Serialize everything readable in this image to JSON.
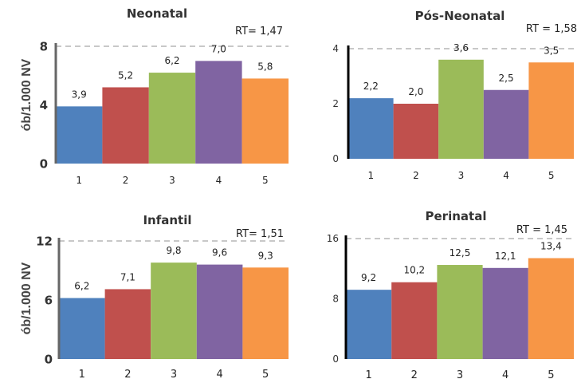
{
  "header_fragment": "",
  "ylabel": "ób/1.000 NV",
  "chart_data": [
    {
      "type": "bar",
      "title": "Neonatal",
      "annotation": "RT= 1,47",
      "categories": [
        "1",
        "2",
        "3",
        "4",
        "5"
      ],
      "values": [
        3.9,
        5.2,
        6.2,
        7.0,
        5.8
      ],
      "value_labels": [
        "3,9",
        "5,2",
        "6,2",
        "7,0",
        "5,8"
      ],
      "ylim": [
        0,
        8
      ],
      "yticks": [
        0,
        4,
        8
      ],
      "ytick_labels": [
        "0",
        "4",
        "8"
      ],
      "ylabel": "ób/1.000 NV",
      "colors": [
        "#4f81bd",
        "#c0504d",
        "#9bbb59",
        "#8064a2",
        "#f79646"
      ]
    },
    {
      "type": "bar",
      "title": "Pós-Neonatal",
      "annotation": "RT = 1,58",
      "categories": [
        "1",
        "2",
        "3",
        "4",
        "5"
      ],
      "values": [
        2.2,
        2.0,
        3.6,
        2.5,
        3.5
      ],
      "value_labels": [
        "2,2",
        "2,0",
        "3,6",
        "2,5",
        "3,5"
      ],
      "ylim": [
        0,
        4
      ],
      "yticks": [
        0,
        2,
        4
      ],
      "ytick_labels": [
        "0",
        "2",
        "4"
      ],
      "colors": [
        "#4f81bd",
        "#c0504d",
        "#9bbb59",
        "#8064a2",
        "#f79646"
      ]
    },
    {
      "type": "bar",
      "title": "Infantil",
      "annotation": "RT= 1,51",
      "categories": [
        "1",
        "2",
        "3",
        "4",
        "5"
      ],
      "values": [
        6.2,
        7.1,
        9.8,
        9.6,
        9.3
      ],
      "value_labels": [
        "6,2",
        "7,1",
        "9,8",
        "9,6",
        "9,3"
      ],
      "ylim": [
        0,
        12
      ],
      "yticks": [
        0,
        6,
        12
      ],
      "ytick_labels": [
        "0",
        "6",
        "12"
      ],
      "ylabel": "ób/1.000 NV",
      "colors": [
        "#4f81bd",
        "#c0504d",
        "#9bbb59",
        "#8064a2",
        "#f79646"
      ]
    },
    {
      "type": "bar",
      "title": "Perinatal",
      "annotation": "RT = 1,45",
      "categories": [
        "1",
        "2",
        "3",
        "4",
        "5"
      ],
      "values": [
        9.2,
        10.2,
        12.5,
        12.1,
        13.4
      ],
      "value_labels": [
        "9,2",
        "10,2",
        "12,5",
        "12,1",
        "13,4"
      ],
      "ylim": [
        0,
        16
      ],
      "yticks": [
        0,
        8,
        16
      ],
      "ytick_labels": [
        "0",
        "8",
        "16"
      ],
      "colors": [
        "#4f81bd",
        "#c0504d",
        "#9bbb59",
        "#8064a2",
        "#f79646"
      ]
    }
  ]
}
